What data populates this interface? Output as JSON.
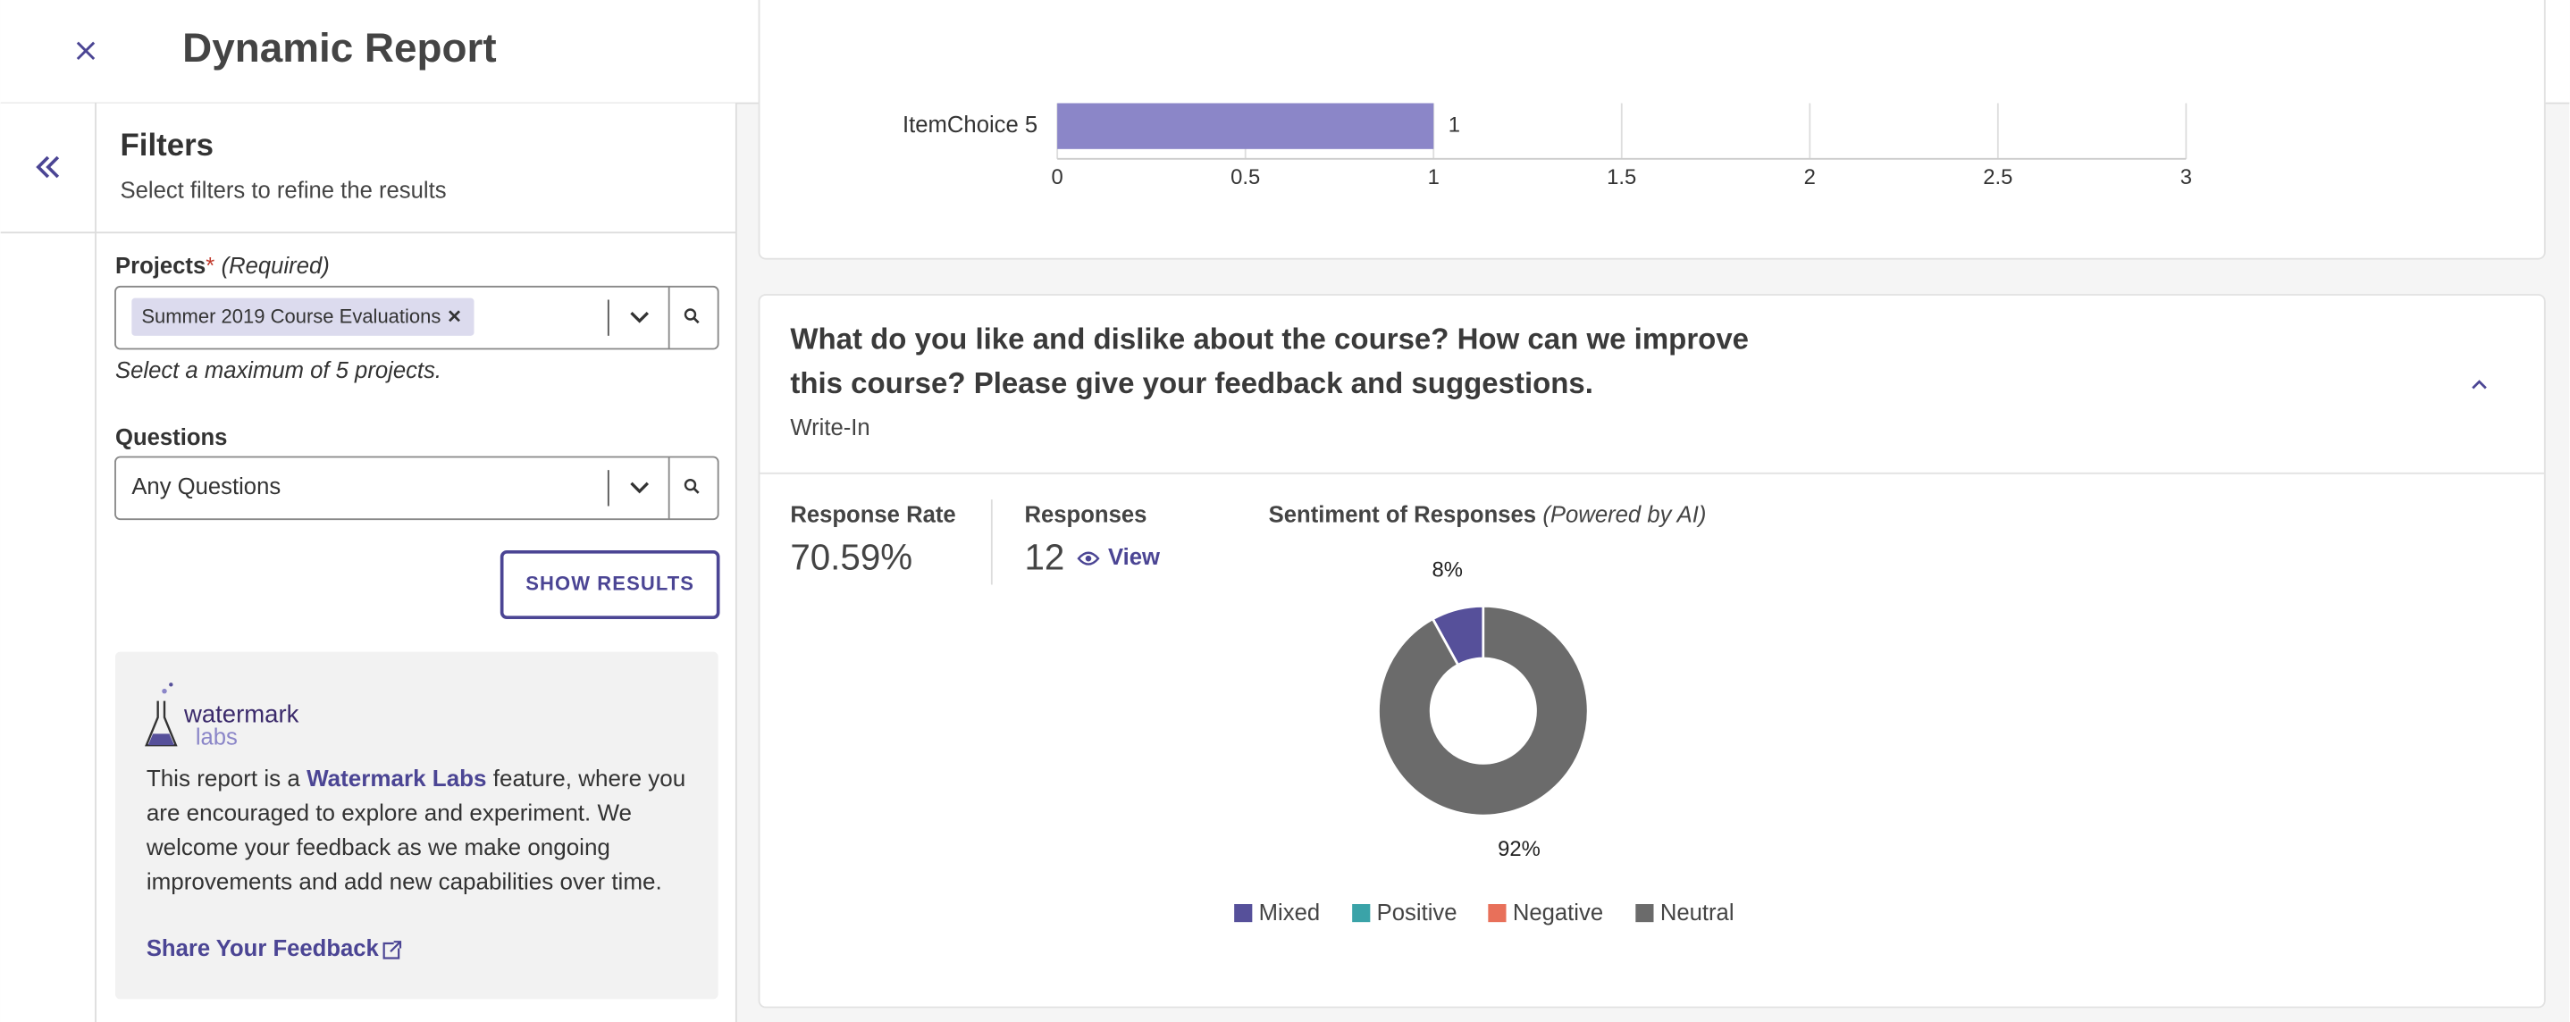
{
  "header": {
    "title": "Dynamic Report"
  },
  "filters": {
    "title": "Filters",
    "subtitle": "Select filters to refine the results",
    "projects_label": "Projects",
    "required_mark": "*",
    "required_note": "(Required)",
    "project_chip": "Summer 2019 Course Evaluations",
    "projects_hint": "Select a maximum of 5 projects.",
    "questions_label": "Questions",
    "questions_value": "Any Questions",
    "show_results": "SHOW RESULTS",
    "labs": {
      "logo_line1": "watermark",
      "logo_line2": "labs",
      "text_before": "This report is a ",
      "link": "Watermark Labs",
      "text_after": " feature, where you are encouraged to explore and experiment. We welcome your feedback as we make ongoing improvements and add new capabilities over time.",
      "feedback": "Share Your Feedback"
    }
  },
  "question": {
    "title": "What do you like and dislike about the course? How can we improve this course? Please give your feedback and suggestions.",
    "type": "Write-In",
    "response_rate_label": "Response Rate",
    "response_rate": "70.59%",
    "responses_label": "Responses",
    "responses": "12",
    "view": "View"
  },
  "chart_data": [
    {
      "type": "bar",
      "categories": [
        "ItemChoice 5"
      ],
      "values": [
        1
      ],
      "color": "#8b86c8",
      "xlim": [
        0,
        3
      ],
      "xticks": [
        0,
        0.5,
        1,
        1.5,
        2,
        2.5,
        3
      ],
      "grid": true
    },
    {
      "type": "pie",
      "title": "Sentiment of Responses",
      "subtitle": "(Powered by AI)",
      "categories": [
        "Mixed",
        "Positive",
        "Negative",
        "Neutral"
      ],
      "values": [
        8,
        0,
        0,
        92
      ],
      "value_labels": [
        "8%",
        null,
        null,
        "92%"
      ],
      "colors": [
        "#56509a",
        "#3aa3a8",
        "#e8705a",
        "#6b6b6b"
      ],
      "donut": true,
      "legend": "bottom"
    }
  ]
}
